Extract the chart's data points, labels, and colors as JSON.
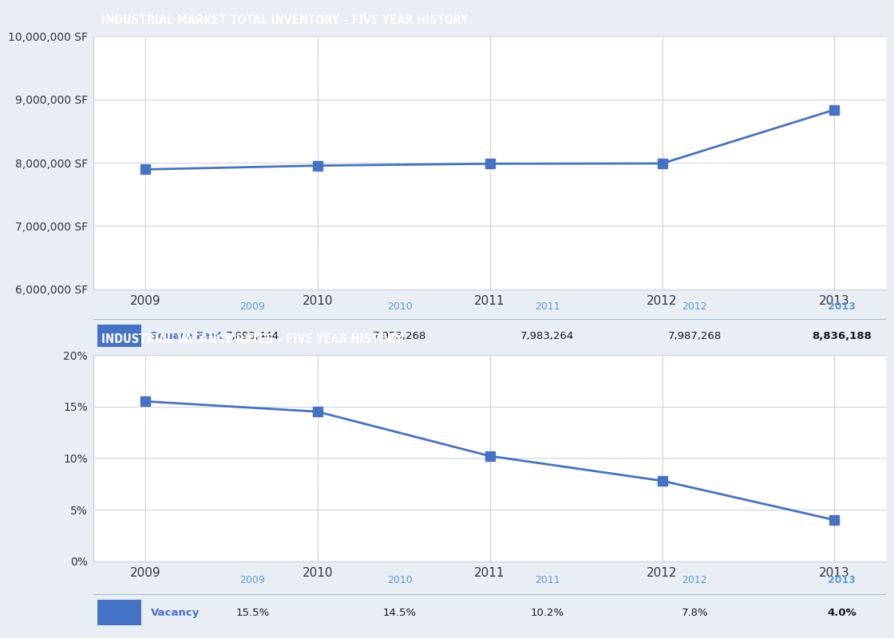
{
  "title1": "INDUSTRIAL MARKET TOTAL INVENTORY – FIVE YEAR HISTORY",
  "title2": "INDUSTRIAL VACANCY RATES – FIVE YEAR HISTORY",
  "years": [
    2009,
    2010,
    2011,
    2012,
    2013
  ],
  "inventory_values": [
    7893444,
    7953268,
    7983264,
    7987268,
    8836188
  ],
  "vacancy_values": [
    0.155,
    0.145,
    0.102,
    0.078,
    0.04
  ],
  "inventory_ylim": [
    6000000,
    10000000
  ],
  "inventory_yticks": [
    6000000,
    7000000,
    8000000,
    9000000,
    10000000
  ],
  "vacancy_ylim": [
    0.0,
    0.2
  ],
  "vacancy_yticks": [
    0.0,
    0.05,
    0.1,
    0.15,
    0.2
  ],
  "line_color": "#4472C4",
  "marker_style": "s",
  "marker_size": 8,
  "header_bg_color": "#1F3864",
  "header_text_color": "#FFFFFF",
  "table_year_color": "#5B9BD5",
  "page_bg_color": "#E8EEF4",
  "grid_color": "#C8D0D8",
  "chart_bg_color": "#FFFFFF",
  "table_bg_color": "#EAEEF3",
  "inv_table_label": "Square Feet",
  "vac_table_label": "Vacancy",
  "inv_table_values": [
    "7,893,444",
    "7,953,268",
    "7,983,264",
    "7,987,268",
    "8,836,188"
  ],
  "vac_table_values": [
    "15.5%",
    "14.5%",
    "10.2%",
    "7.8%",
    "4.0%"
  ],
  "fig_w": 10.24,
  "fig_h": 7.84
}
